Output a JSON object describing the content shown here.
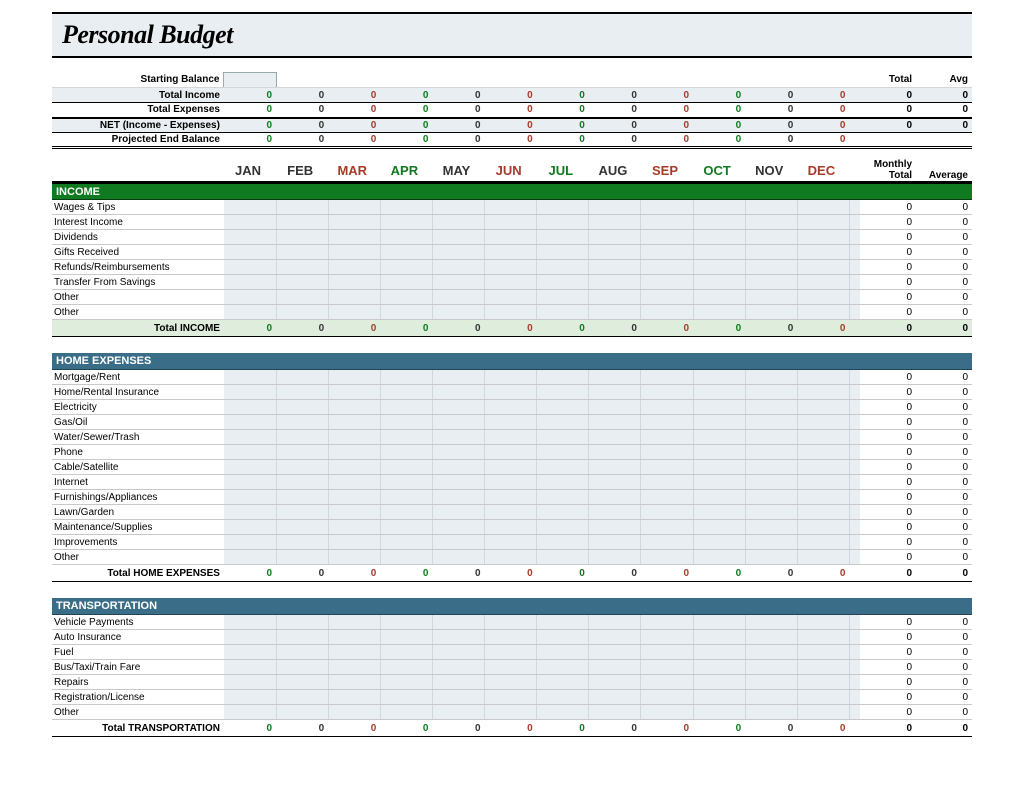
{
  "title": "Personal Budget",
  "header_labels": {
    "starting_balance": "Starting Balance",
    "total_income": "Total Income",
    "total_expenses": "Total Expenses",
    "net": "NET (Income - Expenses)",
    "projected": "Projected End Balance",
    "total": "Total",
    "avg": "Avg",
    "monthly": "Monthly",
    "total_average": "Total Average"
  },
  "months": [
    "JAN",
    "FEB",
    "MAR",
    "APR",
    "MAY",
    "JUN",
    "JUL",
    "AUG",
    "SEP",
    "OCT",
    "NOV",
    "DEC"
  ],
  "month_colors": [
    "#333",
    "#333",
    "#a63b2a",
    "#0f7a1f",
    "#333",
    "#a63b2a",
    "#0f7a1f",
    "#333",
    "#a63b2a",
    "#0f7a1f",
    "#333",
    "#a63b2a"
  ],
  "value_colors": [
    "#0f7a1f",
    "#333",
    "#a63b2a",
    "#0f7a1f",
    "#333",
    "#a63b2a",
    "#0f7a1f",
    "#333",
    "#a63b2a",
    "#0f7a1f",
    "#333",
    "#a63b2a"
  ],
  "summary": {
    "total_income": {
      "vals": [
        0,
        0,
        0,
        0,
        0,
        0,
        0,
        0,
        0,
        0,
        0,
        0
      ],
      "total": 0,
      "avg": 0
    },
    "total_expenses": {
      "vals": [
        0,
        0,
        0,
        0,
        0,
        0,
        0,
        0,
        0,
        0,
        0,
        0
      ],
      "total": 0,
      "avg": 0
    },
    "net": {
      "vals": [
        0,
        0,
        0,
        0,
        0,
        0,
        0,
        0,
        0,
        0,
        0,
        0
      ],
      "total": 0,
      "avg": 0
    },
    "projected": {
      "vals": [
        0,
        0,
        0,
        0,
        0,
        0,
        0,
        0,
        0,
        0,
        0,
        0
      ]
    }
  },
  "sections": [
    {
      "name": "INCOME",
      "style": "income",
      "total_label": "Total INCOME",
      "total_style": "income",
      "items": [
        {
          "label": "Wages & Tips",
          "total": 0,
          "avg": 0
        },
        {
          "label": "Interest Income",
          "total": 0,
          "avg": 0
        },
        {
          "label": "Dividends",
          "total": 0,
          "avg": 0
        },
        {
          "label": "Gifts Received",
          "total": 0,
          "avg": 0
        },
        {
          "label": "Refunds/Reimbursements",
          "total": 0,
          "avg": 0
        },
        {
          "label": "Transfer From Savings",
          "total": 0,
          "avg": 0
        },
        {
          "label": "Other",
          "total": 0,
          "avg": 0
        },
        {
          "label": "Other",
          "total": 0,
          "avg": 0
        }
      ],
      "totals": {
        "vals": [
          0,
          0,
          0,
          0,
          0,
          0,
          0,
          0,
          0,
          0,
          0,
          0
        ],
        "total": 0,
        "avg": 0
      }
    },
    {
      "name": "HOME EXPENSES",
      "style": "home",
      "total_label": "Total HOME EXPENSES",
      "total_style": "plain",
      "items": [
        {
          "label": "Mortgage/Rent",
          "total": 0,
          "avg": 0
        },
        {
          "label": "Home/Rental Insurance",
          "total": 0,
          "avg": 0
        },
        {
          "label": "Electricity",
          "total": 0,
          "avg": 0
        },
        {
          "label": "Gas/Oil",
          "total": 0,
          "avg": 0
        },
        {
          "label": "Water/Sewer/Trash",
          "total": 0,
          "avg": 0
        },
        {
          "label": "Phone",
          "total": 0,
          "avg": 0
        },
        {
          "label": "Cable/Satellite",
          "total": 0,
          "avg": 0
        },
        {
          "label": "Internet",
          "total": 0,
          "avg": 0
        },
        {
          "label": "Furnishings/Appliances",
          "total": 0,
          "avg": 0
        },
        {
          "label": "Lawn/Garden",
          "total": 0,
          "avg": 0
        },
        {
          "label": "Maintenance/Supplies",
          "total": 0,
          "avg": 0
        },
        {
          "label": "Improvements",
          "total": 0,
          "avg": 0
        },
        {
          "label": "Other",
          "total": 0,
          "avg": 0
        }
      ],
      "totals": {
        "vals": [
          0,
          0,
          0,
          0,
          0,
          0,
          0,
          0,
          0,
          0,
          0,
          0
        ],
        "total": 0,
        "avg": 0
      }
    },
    {
      "name": "TRANSPORTATION",
      "style": "trans",
      "total_label": "Total TRANSPORTATION",
      "total_style": "plain",
      "items": [
        {
          "label": "Vehicle Payments",
          "total": 0,
          "avg": 0
        },
        {
          "label": "Auto Insurance",
          "total": 0,
          "avg": 0
        },
        {
          "label": "Fuel",
          "total": 0,
          "avg": 0
        },
        {
          "label": "Bus/Taxi/Train Fare",
          "total": 0,
          "avg": 0
        },
        {
          "label": "Repairs",
          "total": 0,
          "avg": 0
        },
        {
          "label": "Registration/License",
          "total": 0,
          "avg": 0
        },
        {
          "label": "Other",
          "total": 0,
          "avg": 0
        }
      ],
      "totals": {
        "vals": [
          0,
          0,
          0,
          0,
          0,
          0,
          0,
          0,
          0,
          0,
          0,
          0
        ],
        "total": 0,
        "avg": 0
      }
    }
  ]
}
